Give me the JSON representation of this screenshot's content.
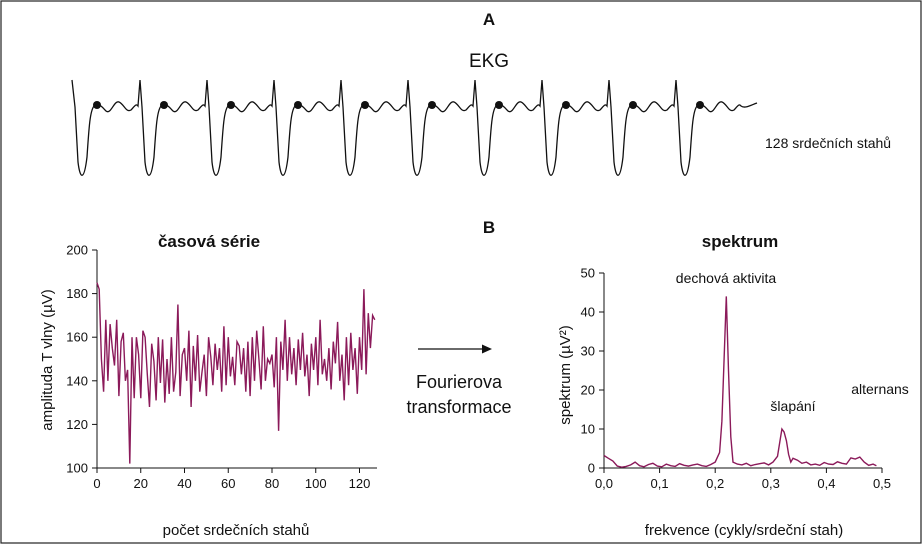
{
  "figure": {
    "panel_a_label": "A",
    "ekg_title": "EKG",
    "beats_label": "128 srdečních stahů",
    "panel_b_label": "B",
    "arrow_label_line1": "Fourierova",
    "arrow_label_line2": "transformace"
  },
  "chart_data": [
    {
      "type": "line",
      "title": "časová série",
      "xlabel": "počet srdečních stahů",
      "ylabel": "amplituda T vlny (µV)",
      "xlim": [
        0,
        128
      ],
      "ylim": [
        100,
        200
      ],
      "xticks": [
        "0",
        "20",
        "40",
        "60",
        "80",
        "100",
        "120"
      ],
      "yticks": [
        "100",
        "120",
        "140",
        "160",
        "180",
        "200"
      ],
      "color": "#8b1a5a",
      "series": [
        {
          "values": [
            185,
            182,
            150,
            135,
            168,
            140,
            166,
            155,
            147,
            168,
            133,
            158,
            162,
            140,
            145,
            102,
            160,
            132,
            160,
            152,
            132,
            163,
            160,
            143,
            128,
            157,
            149,
            131,
            160,
            139,
            159,
            130,
            150,
            134,
            160,
            135,
            144,
            175,
            133,
            152,
            155,
            140,
            163,
            128,
            156,
            140,
            161,
            135,
            144,
            152,
            133,
            160,
            151,
            138,
            157,
            145,
            155,
            135,
            165,
            138,
            160,
            142,
            151,
            138,
            158,
            156,
            143,
            155,
            135,
            158,
            133,
            160,
            140,
            163,
            150,
            136,
            165,
            140,
            150,
            148,
            152,
            137,
            160,
            117,
            158,
            145,
            168,
            140,
            160,
            143,
            155,
            138,
            159,
            145,
            162,
            142,
            152,
            133,
            157,
            145,
            160,
            138,
            168,
            143,
            150,
            140,
            155,
            136,
            158,
            148,
            167,
            140,
            152,
            131,
            160,
            138,
            162,
            145,
            155,
            134,
            160,
            145,
            182,
            143,
            171,
            155,
            170,
            168
          ]
        }
      ]
    },
    {
      "type": "line",
      "title": "spektrum",
      "xlabel": "frekvence (cykly/srdeční stah)",
      "ylabel": "spektrum (µV²)",
      "xlim": [
        0,
        0.5
      ],
      "ylim": [
        0,
        50
      ],
      "xticks": [
        "0,0",
        "0,1",
        "0,2",
        "0,3",
        "0,4",
        "0,5"
      ],
      "yticks": [
        "0",
        "10",
        "20",
        "30",
        "40",
        "50"
      ],
      "color": "#8b1a5a",
      "annotations": [
        "dechová aktivita",
        "šlapání",
        "alternans"
      ],
      "series": [
        {
          "x": [
            0,
            0.008,
            0.016,
            0.024,
            0.032,
            0.04,
            0.048,
            0.056,
            0.064,
            0.072,
            0.08,
            0.088,
            0.096,
            0.104,
            0.112,
            0.12,
            0.128,
            0.136,
            0.144,
            0.152,
            0.16,
            0.168,
            0.176,
            0.184,
            0.192,
            0.2,
            0.208,
            0.212,
            0.216,
            0.22,
            0.224,
            0.228,
            0.232,
            0.24,
            0.248,
            0.256,
            0.264,
            0.272,
            0.28,
            0.288,
            0.296,
            0.304,
            0.312,
            0.316,
            0.32,
            0.324,
            0.328,
            0.332,
            0.336,
            0.34,
            0.348,
            0.356,
            0.364,
            0.372,
            0.38,
            0.388,
            0.396,
            0.404,
            0.412,
            0.42,
            0.428,
            0.436,
            0.444,
            0.452,
            0.46,
            0.468,
            0.476,
            0.484,
            0.49
          ],
          "y": [
            3.2,
            2.5,
            1.8,
            0.5,
            0.2,
            0.4,
            0.8,
            1.5,
            0.6,
            0.3,
            0.9,
            1.2,
            0.5,
            0.3,
            1.0,
            0.6,
            0.4,
            1.1,
            0.7,
            0.5,
            0.8,
            1.0,
            0.6,
            0.4,
            0.9,
            1.5,
            4.0,
            12,
            28,
            44,
            25,
            8,
            1.5,
            1.0,
            0.8,
            1.2,
            0.6,
            0.9,
            1.1,
            1.3,
            0.8,
            1.5,
            3.0,
            6.5,
            10.0,
            9.2,
            7.0,
            3.5,
            1.5,
            2.5,
            2.0,
            1.2,
            1.5,
            0.8,
            1.0,
            0.7,
            1.4,
            1.0,
            0.9,
            1.6,
            1.2,
            1.0,
            2.6,
            2.3,
            2.8,
            1.5,
            0.7,
            1.0,
            0.6
          ]
        }
      ]
    }
  ]
}
